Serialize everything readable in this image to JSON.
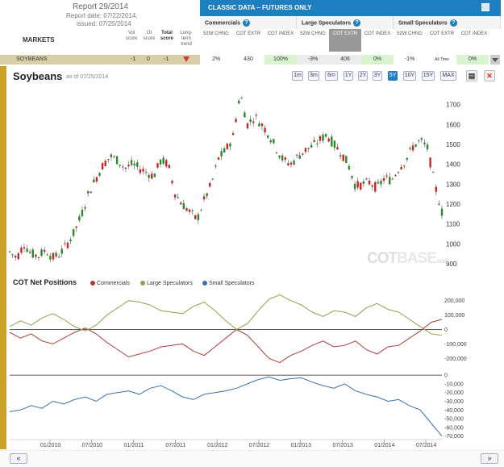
{
  "report": {
    "title": "Report 29/2014",
    "date": "Report date: 07/22/2014,",
    "issued": "issued: 07/25/2014"
  },
  "markets_label": "MARKETS",
  "score_headers": [
    "Vol score",
    "OI score",
    "Total score",
    "Long-term trend"
  ],
  "classic": {
    "title": "CLASSIC DATA – FUTURES ONLY",
    "groups": [
      {
        "label": "Commercials",
        "help": "?"
      },
      {
        "label": "Large Speculators",
        "help": "?"
      },
      {
        "label": "Small Speculators",
        "help": "?"
      }
    ],
    "columns": [
      "52W CHNG",
      "COT EXTR",
      "COT INDEX",
      "52W CHNG",
      "COT EXTR",
      "COT INDEX",
      "52W CHNG",
      "COT EXTR",
      "COT INDEX"
    ]
  },
  "row": {
    "market": "SOYBEANS",
    "vol": "-1",
    "oi": "0",
    "total": "-1",
    "cells": [
      "2%",
      "430",
      "100%",
      "-3%",
      "406",
      "0%",
      "-1%",
      "All Time",
      "0%"
    ]
  },
  "chart": {
    "name": "Soybeans",
    "asof": "as of 07/25/2014",
    "ranges": [
      "1m",
      "3m",
      "6m",
      "1Y",
      "2Y",
      "3Y",
      "5Y",
      "10Y",
      "15Y",
      "MAX"
    ],
    "selected_range": "5Y",
    "watermark": "COT",
    "watermark_suffix": "BASE",
    "watermark_domain": ".com"
  },
  "cot": {
    "title": "COT Net Positions",
    "legend": [
      {
        "name": "Commercials",
        "color": "#b23a3a"
      },
      {
        "name": "Large Speculators",
        "color": "#8aa64a"
      },
      {
        "name": "Small Speculators",
        "color": "#3b6fb0"
      }
    ]
  },
  "chart_data": [
    {
      "type": "line",
      "title": "Soybeans",
      "ylim": [
        880,
        1780
      ],
      "y_ticks": [
        "1700",
        "1600",
        "1500",
        "1400",
        "1300",
        "1200",
        "1100",
        "1000",
        "900"
      ],
      "x_ticks": [
        "01/2010",
        "07/2010",
        "01/2011",
        "07/2011",
        "01/2012",
        "07/2012",
        "01/2013",
        "07/2013",
        "01/2014",
        "07/2014"
      ],
      "series": [
        {
          "values": [
            960,
            930,
            1000,
            950,
            940,
            970,
            930,
            950,
            1000,
            1060,
            1150,
            1260,
            1330,
            1400,
            1440,
            1420,
            1380,
            1400,
            1380,
            1360,
            1340,
            1420,
            1400,
            1250,
            1200,
            1160,
            1120,
            1220,
            1300,
            1430,
            1470,
            1540,
            1760,
            1600,
            1640,
            1600,
            1550,
            1480,
            1420,
            1400,
            1440,
            1470,
            1490,
            1520,
            1550,
            1500,
            1460,
            1400,
            1290,
            1300,
            1310,
            1280,
            1330,
            1320,
            1380,
            1420,
            1490,
            1520,
            1480,
            1300,
            1160
          ]
        }
      ]
    },
    {
      "type": "line",
      "title": "COT Net Positions",
      "y_ticks": [
        "200,000",
        "100,000",
        "0",
        "-100,000",
        "-200,000"
      ],
      "ylim": [
        -260000,
        260000
      ],
      "series": [
        {
          "name": "Commercials",
          "values": [
            -20000,
            -60000,
            -30000,
            -80000,
            -100000,
            -60000,
            -20000,
            10000,
            -30000,
            -90000,
            -140000,
            -190000,
            -170000,
            -150000,
            -120000,
            -110000,
            -100000,
            -150000,
            -180000,
            -120000,
            -60000,
            0,
            -40000,
            -120000,
            -200000,
            -230000,
            -180000,
            -150000,
            -110000,
            -80000,
            -120000,
            -110000,
            -80000,
            -140000,
            -170000,
            -120000,
            -110000,
            -60000,
            -10000,
            50000,
            70000
          ]
        },
        {
          "name": "Large Speculators",
          "values": [
            20000,
            60000,
            30000,
            80000,
            110000,
            70000,
            20000,
            -10000,
            30000,
            100000,
            150000,
            200000,
            190000,
            170000,
            130000,
            120000,
            110000,
            160000,
            190000,
            130000,
            60000,
            0,
            40000,
            130000,
            210000,
            240000,
            200000,
            170000,
            120000,
            90000,
            130000,
            120000,
            90000,
            150000,
            180000,
            140000,
            120000,
            70000,
            20000,
            -30000,
            -40000
          ]
        }
      ]
    },
    {
      "type": "line",
      "title": "Small Speculators",
      "y_ticks": [
        "0",
        "-10,000",
        "-20,000",
        "-30,000",
        "-40,000",
        "-50,000",
        "-60,000",
        "-70,000"
      ],
      "ylim": [
        -74000,
        2000
      ],
      "series": [
        {
          "name": "Small Speculators",
          "values": [
            -42000,
            -40000,
            -35000,
            -38000,
            -30000,
            -33000,
            -28000,
            -25000,
            -30000,
            -22000,
            -20000,
            -18000,
            -22000,
            -15000,
            -12000,
            -18000,
            -25000,
            -28000,
            -22000,
            -20000,
            -18000,
            -15000,
            -10000,
            -5000,
            -2000,
            -6000,
            -4000,
            -3000,
            -8000,
            -12000,
            -15000,
            -10000,
            -18000,
            -22000,
            -25000,
            -30000,
            -28000,
            -35000,
            -40000,
            -55000,
            -70000
          ]
        }
      ]
    }
  ],
  "footer": {
    "prev": "«",
    "next": "»"
  }
}
